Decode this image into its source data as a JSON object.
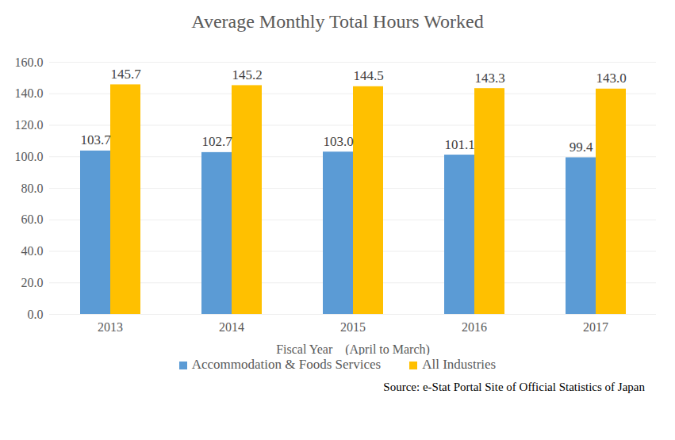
{
  "chart_data": {
    "type": "bar",
    "title": "Average Monthly Total Hours Worked",
    "xlabel": "Fiscal Year　(April to March)",
    "caption": "Source: e-Stat Portal Site of Official Statistics of Japan",
    "categories": [
      "2013",
      "2014",
      "2015",
      "2016",
      "2017"
    ],
    "series": [
      {
        "name": "Accommodation & Foods Services",
        "color": "#5b9bd5",
        "values": [
          103.7,
          102.7,
          103.0,
          101.1,
          99.4
        ],
        "value_labels": [
          "103.7",
          "102.7",
          "103.0",
          "101.1",
          "99.4"
        ]
      },
      {
        "name": "All Industries",
        "color": "#ffc000",
        "values": [
          145.7,
          145.2,
          144.5,
          143.3,
          143.0
        ],
        "value_labels": [
          "145.7",
          "145.2",
          "144.5",
          "143.3",
          "143.0"
        ]
      }
    ],
    "ylim": [
      0,
      160
    ],
    "yticks": [
      {
        "value": 0,
        "label": "0.0"
      },
      {
        "value": 20,
        "label": "20.0"
      },
      {
        "value": 40,
        "label": "40.0"
      },
      {
        "value": 60,
        "label": "60.0"
      },
      {
        "value": 80,
        "label": "80.0"
      },
      {
        "value": 100,
        "label": "100.0"
      },
      {
        "value": 120,
        "label": "120.0"
      },
      {
        "value": 140,
        "label": "140.0"
      },
      {
        "value": 160,
        "label": "160.0"
      }
    ],
    "grid": true,
    "legend": "bottom",
    "data_labels": true
  }
}
